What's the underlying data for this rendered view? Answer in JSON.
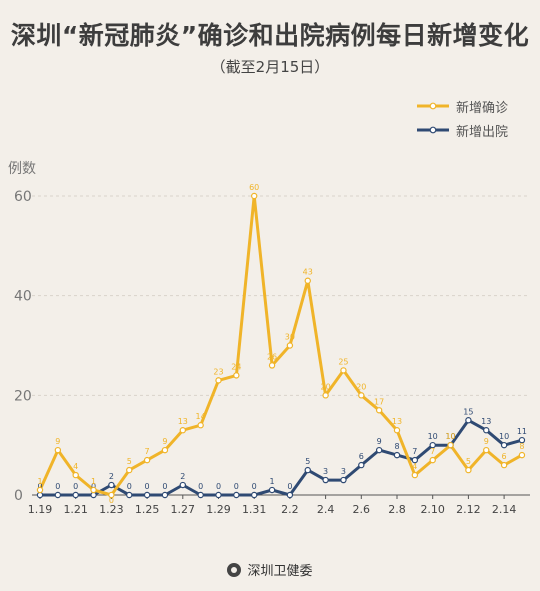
{
  "header": {
    "title": "深圳“新冠肺炎”确诊和出院病例每日新增变化",
    "subtitle": "（截至2月15日）"
  },
  "footer": {
    "text": "深圳卫健委"
  },
  "chart_data": {
    "type": "line",
    "title": "深圳“新冠肺炎”确诊和出院病例每日新增变化",
    "subtitle": "（截至2月15日）",
    "ylabel": "例数",
    "xlabel": "",
    "ylim": [
      0,
      60
    ],
    "yticks": [
      0,
      20,
      40,
      60
    ],
    "grid": true,
    "legend_position": "top-right",
    "x": [
      "1.19",
      "1.20",
      "1.21",
      "1.22",
      "1.23",
      "1.24",
      "1.25",
      "1.26",
      "1.27",
      "1.28",
      "1.29",
      "1.30",
      "1.31",
      "2.1",
      "2.2",
      "2.3",
      "2.4",
      "2.5",
      "2.6",
      "2.7",
      "2.8",
      "2.9",
      "2.10",
      "2.11",
      "2.12",
      "2.13",
      "2.14",
      "2.15"
    ],
    "xtick_labels": [
      "1.19",
      "1.21",
      "1.23",
      "1.25",
      "1.27",
      "1.29",
      "1.31",
      "2.2",
      "2.4",
      "2.6",
      "2.8",
      "2.10",
      "2.12",
      "2.14"
    ],
    "series": [
      {
        "name": "新增确诊",
        "color": "#f0b429",
        "values": [
          1,
          9,
          4,
          1,
          0,
          5,
          7,
          9,
          13,
          14,
          23,
          24,
          60,
          26,
          30,
          43,
          20,
          25,
          20,
          17,
          13,
          4,
          7,
          10,
          5,
          9,
          6,
          8
        ]
      },
      {
        "name": "新增出院",
        "color": "#2f4a73",
        "values": [
          0,
          0,
          0,
          0,
          2,
          0,
          0,
          0,
          2,
          0,
          0,
          0,
          0,
          1,
          0,
          5,
          3,
          3,
          6,
          9,
          8,
          7,
          10,
          10,
          15,
          13,
          10,
          11
        ]
      }
    ]
  }
}
